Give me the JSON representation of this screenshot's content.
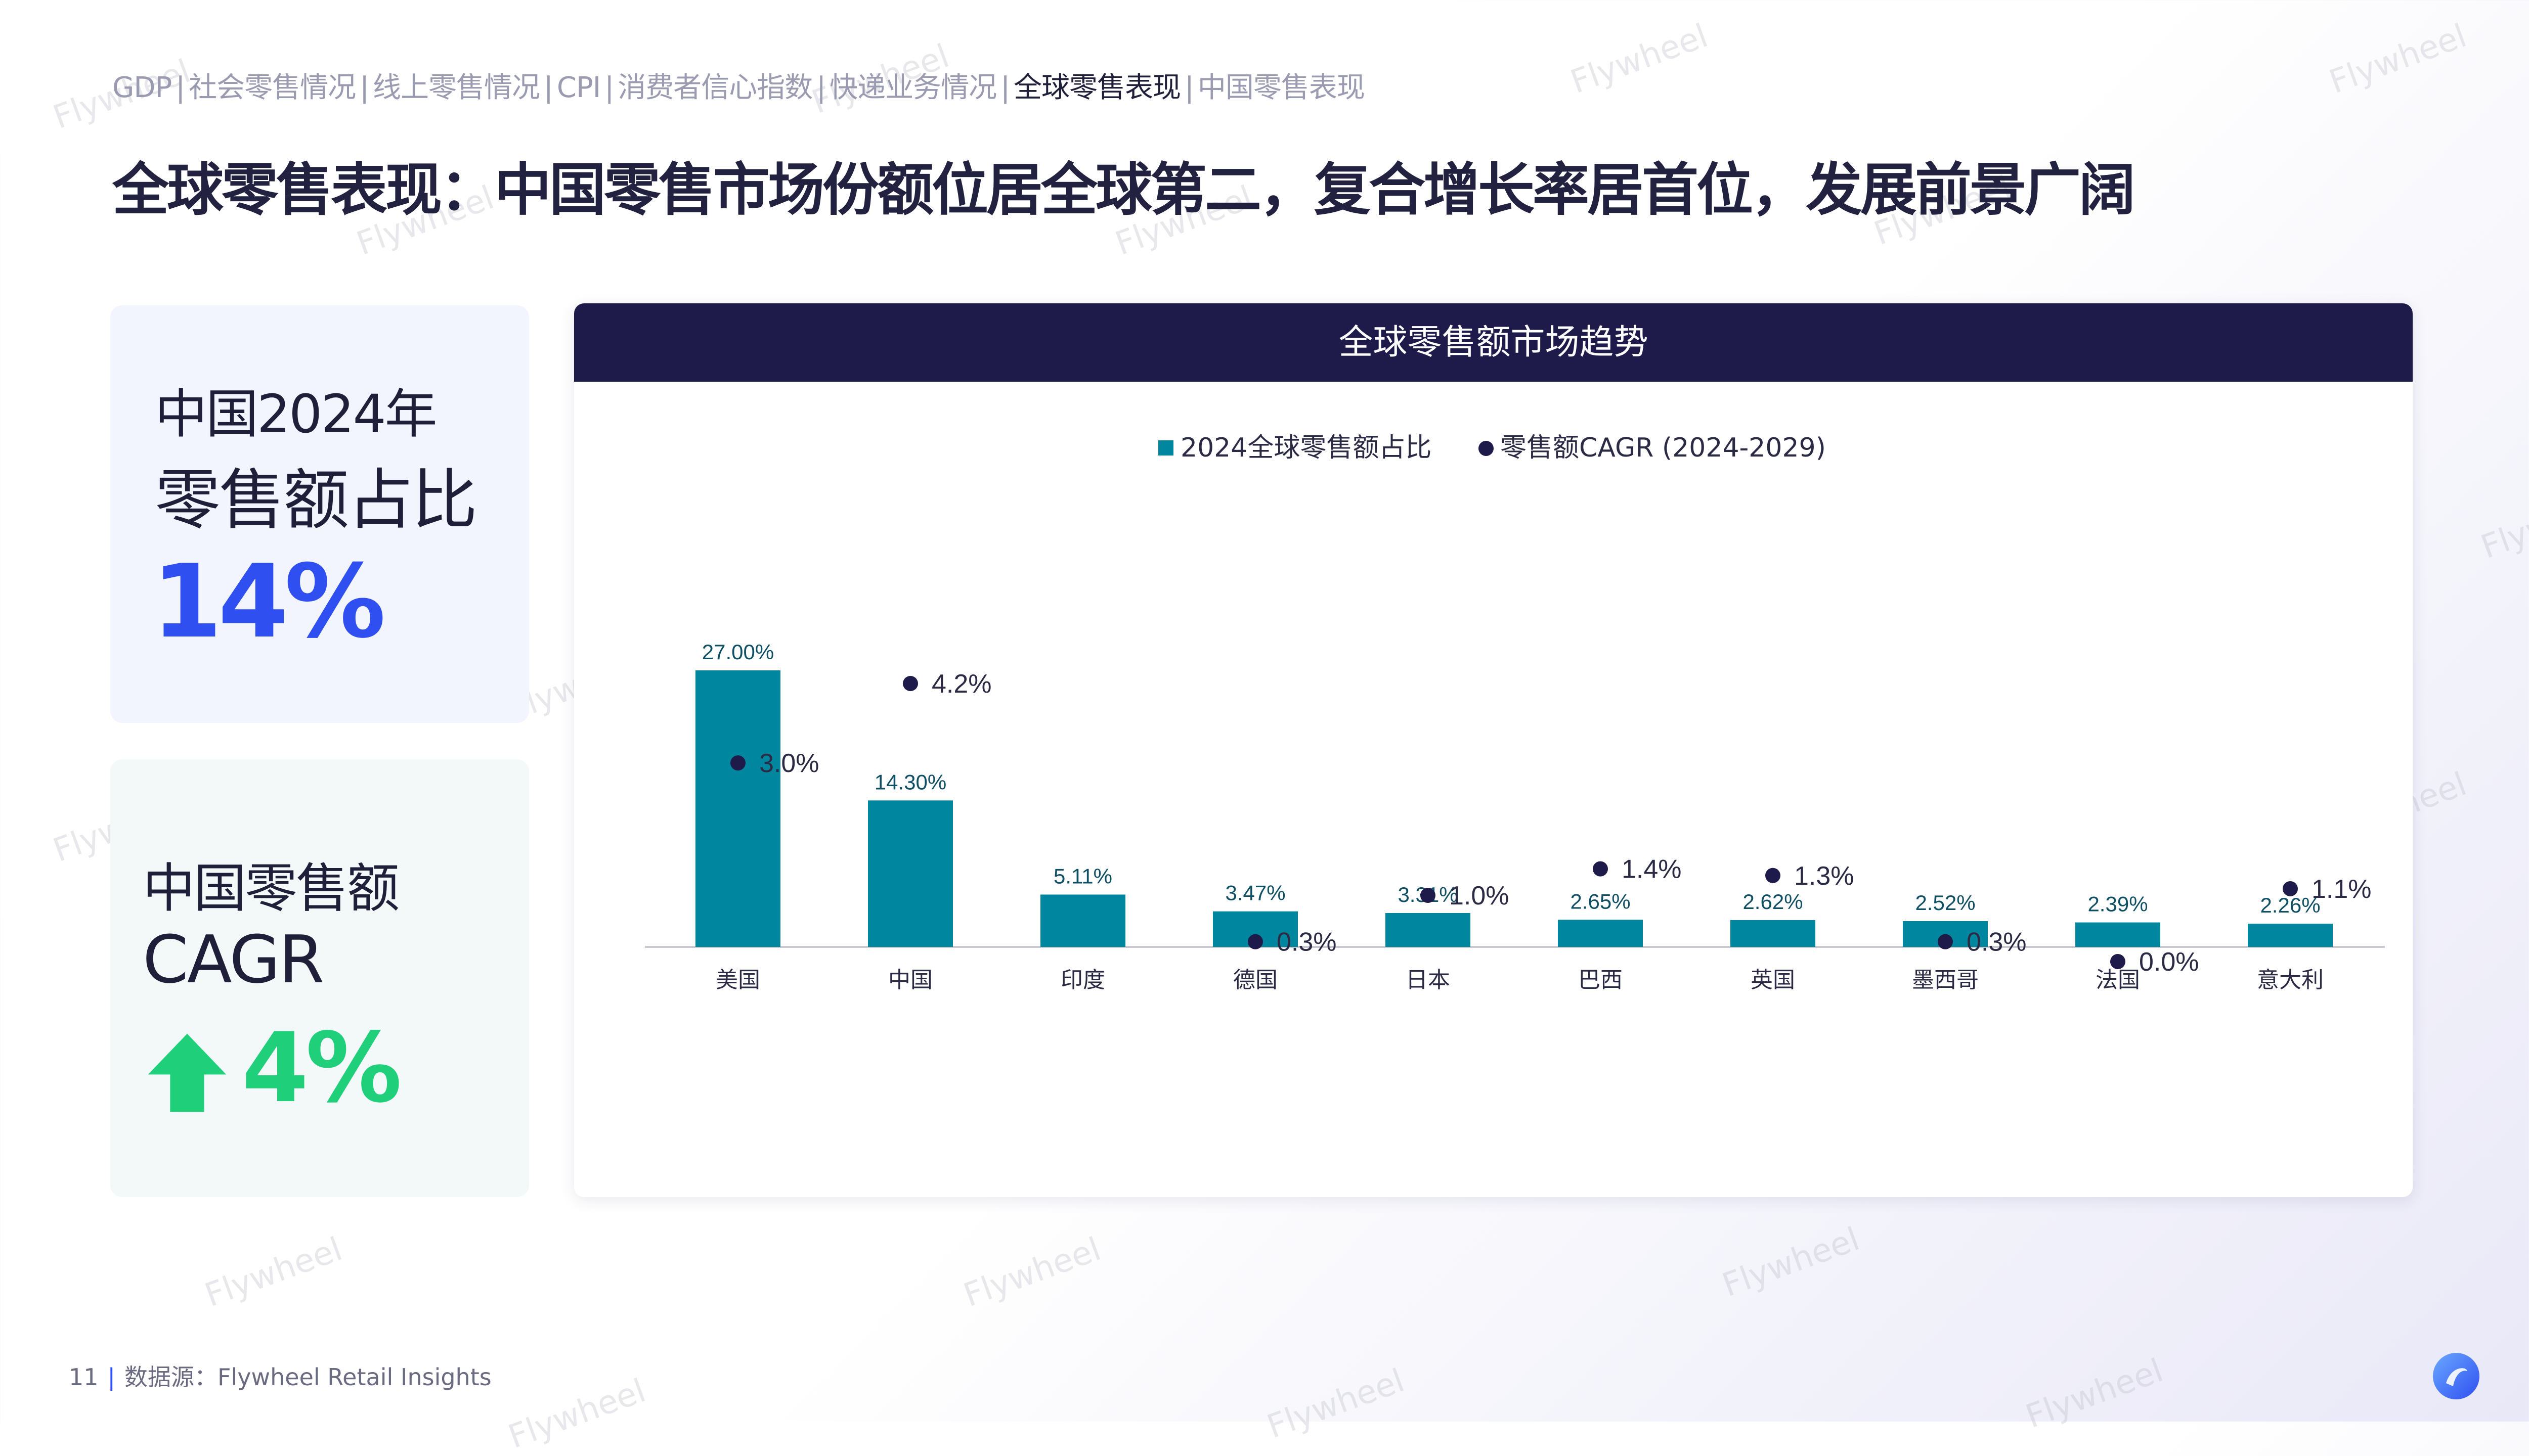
{
  "breadcrumb": [
    {
      "label": "GDP",
      "active": false
    },
    {
      "label": "社会零售情况",
      "active": false
    },
    {
      "label": "线上零售情况",
      "active": false
    },
    {
      "label": "CPI",
      "active": false
    },
    {
      "label": "消费者信心指数",
      "active": false
    },
    {
      "label": "快递业务情况",
      "active": false
    },
    {
      "label": "全球零售表现",
      "active": true
    },
    {
      "label": "中国零售表现",
      "active": false
    }
  ],
  "page_title": "全球零售表现：中国零售市场份额位居全球第二，复合增长率居首位，发展前景广阔",
  "share_card": {
    "line1": "中国2024年",
    "line2": "零售额占比",
    "value": "14%"
  },
  "cagr_card": {
    "line1": "中国零售额",
    "line2": "CAGR",
    "value": "4%",
    "icon": "up-arrow-icon"
  },
  "chart_data": {
    "type": "bar",
    "title": "全球零售额市场趋势",
    "categories": [
      "美国",
      "中国",
      "印度",
      "德国",
      "日本",
      "巴西",
      "英国",
      "墨西哥",
      "法国",
      "意大利"
    ],
    "series": [
      {
        "name": "2024全球零售额占比",
        "type": "bar",
        "values": [
          27.0,
          14.3,
          5.11,
          3.47,
          3.31,
          2.65,
          2.62,
          2.52,
          2.39,
          2.26
        ],
        "labels": [
          "27.00%",
          "14.30%",
          "5.11%",
          "3.47%",
          "3.31%",
          "2.65%",
          "2.62%",
          "2.52%",
          "2.39%",
          "2.26%"
        ],
        "color": "#00869f"
      },
      {
        "name": "零售额CAGR (2024-2029)",
        "type": "scatter",
        "values": [
          3.0,
          4.2,
          null,
          0.3,
          1.0,
          1.4,
          1.3,
          0.3,
          0.0,
          1.1
        ],
        "labels": [
          "3.0%",
          "4.2%",
          "",
          "0.3%",
          "1.0%",
          "1.4%",
          "1.3%",
          "0.3%",
          "0.0%",
          "1.1%"
        ],
        "color": "#1e1b4b"
      }
    ],
    "legend_position": "top-center",
    "grid": false,
    "ylim_bar": [
      0,
      30
    ],
    "ylim_cagr": [
      -5,
      5
    ]
  },
  "footer": {
    "page_number": "11",
    "source": "数据源：Flywheel  Retail Insights"
  },
  "watermark_text": "Flywheel",
  "colors": {
    "brand_navy": "#1e1b4b",
    "bar_teal": "#00869f",
    "accent_blue": "#2f4ff0",
    "accent_green": "#1fcf7a"
  }
}
